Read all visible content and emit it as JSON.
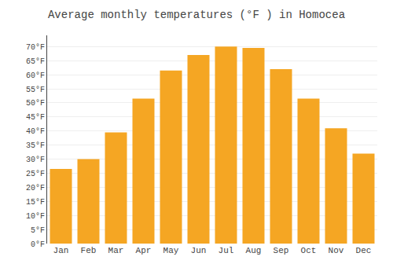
{
  "chart_data": {
    "type": "bar",
    "title": "Average monthly temperatures (°F ) in Homocea",
    "categories": [
      "Jan",
      "Feb",
      "Mar",
      "Apr",
      "May",
      "Jun",
      "Jul",
      "Aug",
      "Sep",
      "Oct",
      "Nov",
      "Dec"
    ],
    "values": [
      26.5,
      30.0,
      39.5,
      51.5,
      61.5,
      67.0,
      70.0,
      69.5,
      62.0,
      51.5,
      41.0,
      32.0
    ],
    "color": "#F5A623",
    "ylim": [
      0,
      74
    ],
    "yticks": [
      {
        "value": 0,
        "label": "0°F"
      },
      {
        "value": 5,
        "label": "5°F"
      },
      {
        "value": 10,
        "label": "10°F"
      },
      {
        "value": 15,
        "label": "15°F"
      },
      {
        "value": 20,
        "label": "20°F"
      },
      {
        "value": 25,
        "label": "25°F"
      },
      {
        "value": 30,
        "label": "30°F"
      },
      {
        "value": 35,
        "label": "35°F"
      },
      {
        "value": 40,
        "label": "40°F"
      },
      {
        "value": 45,
        "label": "45°F"
      },
      {
        "value": 50,
        "label": "50°F"
      },
      {
        "value": 55,
        "label": "55°F"
      },
      {
        "value": 60,
        "label": "60°F"
      },
      {
        "value": 65,
        "label": "65°F"
      },
      {
        "value": 70,
        "label": "70°F"
      }
    ],
    "grid": true
  }
}
